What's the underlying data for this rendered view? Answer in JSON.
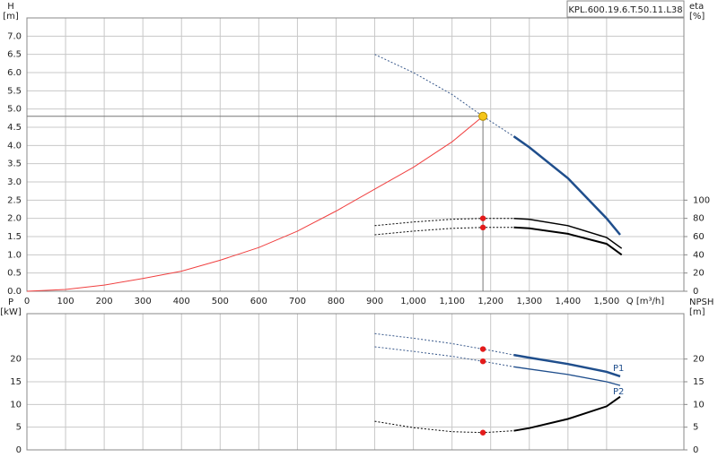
{
  "chart_data": [
    {
      "type": "line",
      "title": "KPL.600.19.6.T.50.11.L38",
      "y_label": "H",
      "y_unit": "[m]",
      "y2_label": "eta",
      "y2_unit": "[%]",
      "x_label": "Q [m³/h]",
      "xlim": [
        0,
        1700
      ],
      "xticks": [
        0,
        100,
        200,
        300,
        400,
        500,
        600,
        700,
        800,
        900,
        {
          "value": 1000,
          "label": "1,000"
        },
        {
          "value": 1100,
          "label": "1,100"
        },
        {
          "value": 1200,
          "label": "1,200"
        },
        {
          "value": 1300,
          "label": "1,300"
        },
        {
          "value": 1400,
          "label": "1,400"
        },
        {
          "value": 1500,
          "label": "1,500"
        }
      ],
      "ylim": [
        0,
        7.5
      ],
      "yticks": [
        {
          "value": 0,
          "label": "0.0"
        },
        {
          "value": 0.5,
          "label": "0.5"
        },
        {
          "value": 1,
          "label": "1.0"
        },
        {
          "value": 1.5,
          "label": "1.5"
        },
        {
          "value": 2,
          "label": "2.0"
        },
        {
          "value": 2.5,
          "label": "2.5"
        },
        {
          "value": 3,
          "label": "3.0"
        },
        {
          "value": 3.5,
          "label": "3.5"
        },
        {
          "value": 4,
          "label": "4.0"
        },
        {
          "value": 4.5,
          "label": "4.5"
        },
        {
          "value": 5,
          "label": "5.0"
        },
        {
          "value": 5.5,
          "label": "5.5"
        },
        {
          "value": 6,
          "label": "6.0"
        },
        {
          "value": 6.5,
          "label": "6.5"
        },
        {
          "value": 7,
          "label": "7.0"
        }
      ],
      "y2lim": [
        0,
        300
      ],
      "y2ticks": [
        0,
        20,
        40,
        60,
        80,
        100
      ],
      "grid": true,
      "series": [
        {
          "color": "#f04040",
          "width": 1,
          "x": [
            0,
            100,
            200,
            300,
            400,
            500,
            600,
            700,
            800,
            900,
            1000,
            1100,
            1180
          ],
          "values": [
            0,
            0.05,
            0.17,
            0.35,
            0.55,
            0.85,
            1.2,
            1.65,
            2.2,
            2.8,
            3.4,
            4.1,
            4.8
          ]
        },
        {
          "color": "#3a5a8c",
          "width": 1,
          "dash": true,
          "x": [
            900,
            1000,
            1100,
            1180,
            1260
          ],
          "values": [
            6.5,
            6.0,
            5.4,
            4.8,
            4.25
          ]
        },
        {
          "color": "#1f4e8c",
          "width": 2.5,
          "x": [
            1260,
            1300,
            1400,
            1500,
            1535
          ],
          "values": [
            4.25,
            3.95,
            3.1,
            2.0,
            1.55
          ]
        },
        {
          "color": "#000000",
          "width": 1,
          "dash": true,
          "axis": "y2",
          "x": [
            900,
            1000,
            1100,
            1180,
            1260
          ],
          "values": [
            72,
            76,
            79,
            80,
            80
          ]
        },
        {
          "color": "#000000",
          "width": 1.5,
          "axis": "y2",
          "x": [
            1260,
            1300,
            1400,
            1500,
            1539
          ],
          "values": [
            80,
            79,
            72,
            59,
            47
          ]
        },
        {
          "color": "#000000",
          "width": 1,
          "dash": true,
          "axis": "y2",
          "x": [
            900,
            1000,
            1100,
            1180,
            1260
          ],
          "values": [
            62,
            66,
            69,
            70,
            70
          ]
        },
        {
          "color": "#000000",
          "width": 2,
          "axis": "y2",
          "x": [
            1260,
            1300,
            1400,
            1500,
            1539
          ],
          "values": [
            70,
            69,
            63,
            52,
            40
          ]
        }
      ],
      "markers": [
        {
          "x": 1180,
          "y": 4.8,
          "color": "#f5c518",
          "crosshair": true
        },
        {
          "x": 1180,
          "y": 80,
          "axis": "y2",
          "color": "#e31b1b"
        },
        {
          "x": 1180,
          "y": 70,
          "axis": "y2",
          "color": "#e31b1b"
        }
      ]
    },
    {
      "type": "line",
      "y_label": "P",
      "y_unit": "[kW]",
      "y2_label": "NPSH",
      "y2_unit": "[m]",
      "xlim": [
        0,
        1700
      ],
      "ylim": [
        0,
        30
      ],
      "yticks": [
        0,
        5,
        10,
        15,
        20
      ],
      "y2lim": [
        0,
        30
      ],
      "y2ticks": [
        0,
        5,
        10,
        15,
        20
      ],
      "grid": true,
      "series": [
        {
          "color": "#3a5a8c",
          "width": 1,
          "dash": true,
          "x": [
            900,
            1000,
            1100,
            1180,
            1260
          ],
          "values": [
            25.6,
            24.6,
            23.4,
            22.2,
            20.9
          ]
        },
        {
          "color": "#1f4e8c",
          "width": 2.5,
          "label": "P1",
          "label_side": "above",
          "x": [
            1260,
            1300,
            1400,
            1500,
            1535
          ],
          "values": [
            20.9,
            20.3,
            18.9,
            17.2,
            16.2
          ]
        },
        {
          "color": "#3a5a8c",
          "width": 1,
          "dash": true,
          "x": [
            900,
            1000,
            1100,
            1180,
            1260
          ],
          "values": [
            22.7,
            21.7,
            20.6,
            19.5,
            18.3
          ]
        },
        {
          "color": "#1f4e8c",
          "width": 1.3,
          "label": "P2",
          "label_side": "below",
          "x": [
            1260,
            1300,
            1400,
            1500,
            1535
          ],
          "values": [
            18.3,
            17.8,
            16.6,
            15.0,
            14.2
          ]
        },
        {
          "color": "#000000",
          "width": 1,
          "dash": true,
          "axis": "y2",
          "x": [
            900,
            1000,
            1100,
            1180,
            1260
          ],
          "values": [
            6.3,
            4.9,
            4.0,
            3.8,
            4.2
          ]
        },
        {
          "color": "#000000",
          "width": 2,
          "axis": "y2",
          "x": [
            1260,
            1300,
            1400,
            1500,
            1535
          ],
          "values": [
            4.2,
            4.8,
            6.8,
            9.6,
            11.7
          ]
        }
      ],
      "markers": [
        {
          "x": 1180,
          "y": 22.2,
          "color": "#e31b1b"
        },
        {
          "x": 1180,
          "y": 19.5,
          "color": "#e31b1b"
        },
        {
          "x": 1180,
          "y": 3.8,
          "axis": "y2",
          "color": "#e31b1b"
        }
      ]
    }
  ]
}
